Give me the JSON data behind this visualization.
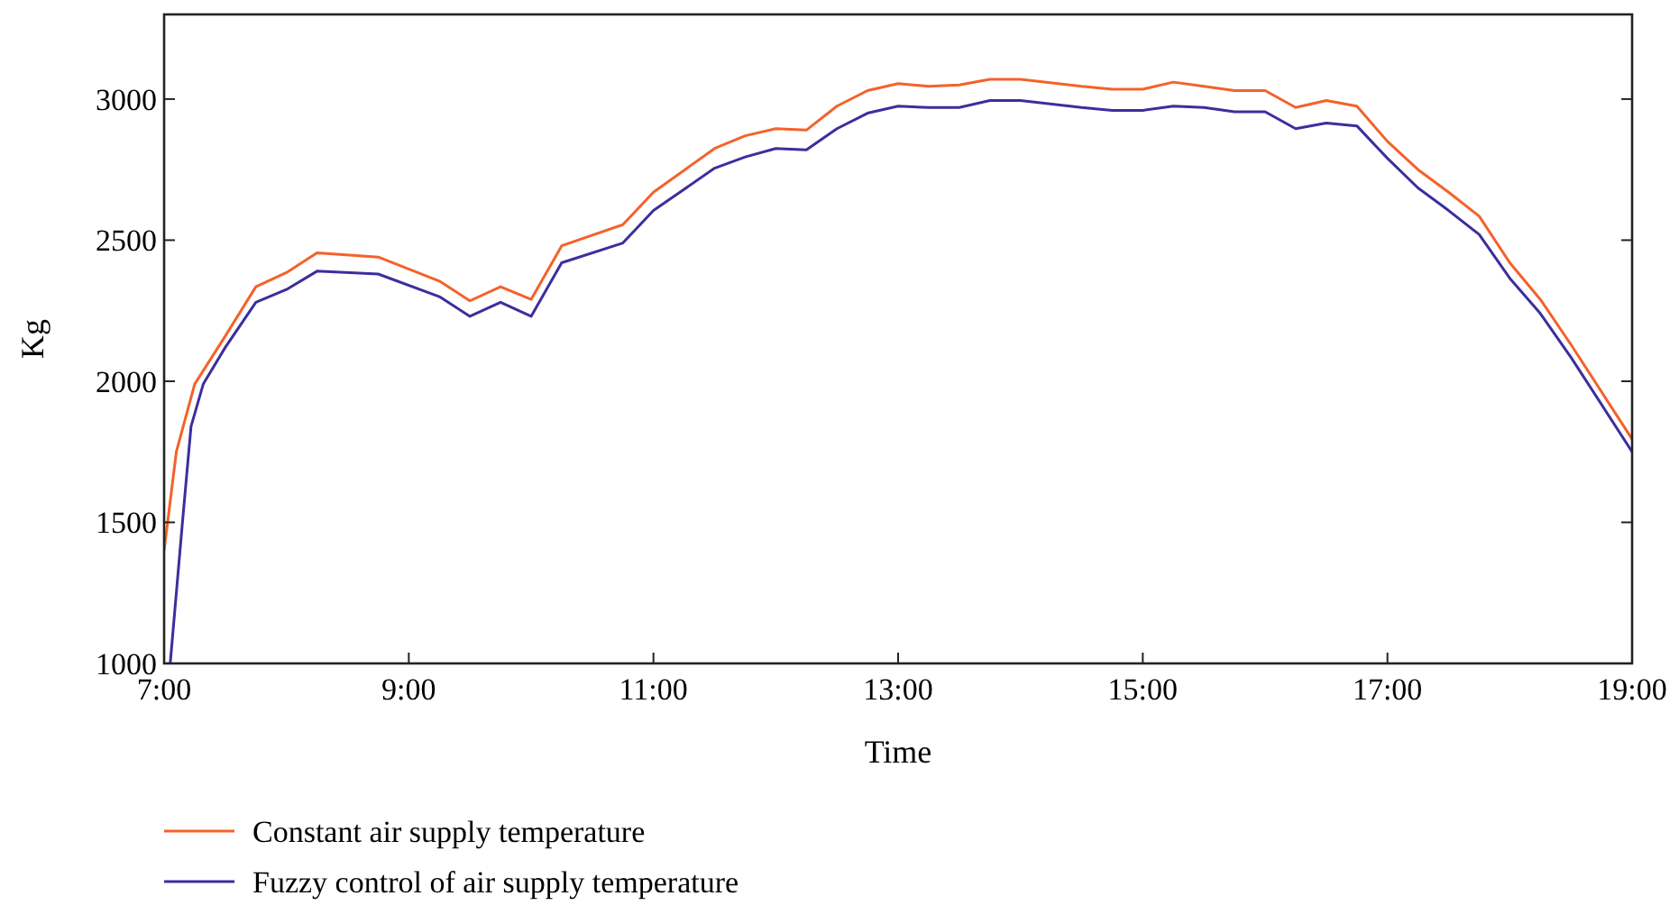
{
  "chart_data": {
    "type": "line",
    "xlabel": "Time",
    "ylabel": "Kg",
    "xlim": [
      7,
      19
    ],
    "xticks": [
      {
        "value": 7,
        "label": "7:00"
      },
      {
        "value": 9,
        "label": "9:00"
      },
      {
        "value": 11,
        "label": "11:00"
      },
      {
        "value": 13,
        "label": "13:00"
      },
      {
        "value": 15,
        "label": "15:00"
      },
      {
        "value": 17,
        "label": "17:00"
      },
      {
        "value": 19,
        "label": "19:00"
      }
    ],
    "ylim": [
      1000,
      3300
    ],
    "yticks": [
      1000,
      1500,
      2000,
      2500,
      3000
    ],
    "grid": false,
    "legend": "bottom left",
    "marker": "none",
    "line_style": "solid",
    "series": [
      {
        "name": "Constant air supply temperature",
        "color": "#f4622a",
        "x": [
          7,
          7.1,
          7.25,
          7.5,
          7.75,
          8,
          8.25,
          8.75,
          9.25,
          9.5,
          9.75,
          10,
          10.25,
          10.75,
          11,
          11.5,
          11.75,
          12,
          12.25,
          12.5,
          12.75,
          13,
          13.25,
          13.5,
          13.75,
          14,
          14.5,
          14.75,
          15,
          15.25,
          15.5,
          15.75,
          16,
          16.25,
          16.5,
          16.75,
          17,
          17.25,
          17.5,
          17.75,
          18,
          18.25,
          18.5,
          19
        ],
        "values": [
          1400,
          1750,
          1990,
          2160,
          2335,
          2385,
          2455,
          2440,
          2355,
          2285,
          2335,
          2290,
          2480,
          2555,
          2670,
          2825,
          2870,
          2895,
          2890,
          2975,
          3030,
          3055,
          3045,
          3050,
          3070,
          3070,
          3045,
          3035,
          3035,
          3060,
          3045,
          3030,
          3030,
          2970,
          2995,
          2975,
          2850,
          2750,
          2670,
          2585,
          2420,
          2290,
          2130,
          1795
        ]
      },
      {
        "name": "Fuzzy control of air supply temperature",
        "color": "#3a2f9e",
        "x": [
          7.05,
          7.15,
          7.22,
          7.32,
          7.5,
          7.75,
          8,
          8.25,
          8.75,
          9.25,
          9.5,
          9.75,
          10,
          10.25,
          10.75,
          11,
          11.5,
          11.75,
          12,
          12.25,
          12.5,
          12.75,
          13,
          13.25,
          13.5,
          13.75,
          14,
          14.5,
          14.75,
          15,
          15.25,
          15.5,
          15.75,
          16,
          16.25,
          16.5,
          16.75,
          17,
          17.25,
          17.5,
          17.75,
          18,
          18.25,
          18.5,
          19
        ],
        "values": [
          1000,
          1500,
          1840,
          1990,
          2120,
          2280,
          2325,
          2390,
          2380,
          2300,
          2230,
          2280,
          2230,
          2420,
          2490,
          2605,
          2755,
          2795,
          2825,
          2820,
          2895,
          2950,
          2975,
          2970,
          2970,
          2995,
          2995,
          2970,
          2960,
          2960,
          2975,
          2970,
          2955,
          2955,
          2895,
          2915,
          2905,
          2790,
          2685,
          2605,
          2520,
          2365,
          2240,
          2085,
          1750
        ]
      }
    ]
  }
}
